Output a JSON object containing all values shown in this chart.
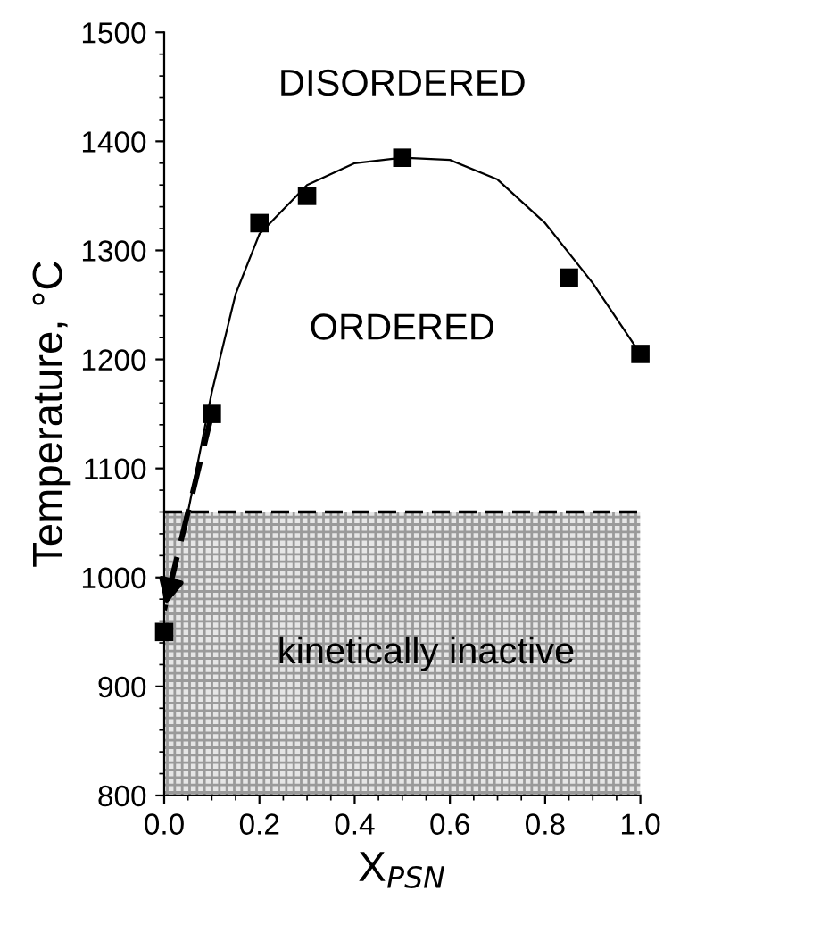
{
  "chart_data": {
    "type": "scatter",
    "xlabel": "X$_{PSN}$",
    "ylabel": "Temperature, °C",
    "xlim": [
      0,
      1.0
    ],
    "ylim": [
      800,
      1500
    ],
    "xticks": [
      {
        "value": 0,
        "label": "0.0"
      },
      0.2,
      0.4,
      0.6,
      0.8,
      {
        "value": 1.0,
        "label": "1.0"
      }
    ],
    "yticks": [
      800,
      900,
      1000,
      1100,
      1200,
      1300,
      1400,
      1500
    ],
    "grid": false,
    "legend": false,
    "series": [
      {
        "color": "#000000",
        "marker": "square",
        "x": [
          0.0,
          0.1,
          0.2,
          0.3,
          0.5,
          0.85,
          1.0
        ],
        "values": [
          950,
          1150,
          1325,
          1350,
          1385,
          1275,
          1205
        ]
      },
      {
        "type": "line",
        "color": "#000000",
        "marker": "none",
        "line_style": "solid",
        "x": [
          0.05,
          0.1,
          0.15,
          0.2,
          0.3,
          0.4,
          0.5,
          0.6,
          0.7,
          0.8,
          0.9,
          1.0
        ],
        "values": [
          1060,
          1170,
          1260,
          1315,
          1360,
          1380,
          1385,
          1383,
          1365,
          1325,
          1270,
          1205
        ]
      },
      {
        "type": "line",
        "color": "#000000",
        "marker": "none",
        "line_style": "dashed",
        "x": [
          0.1,
          0.0
        ],
        "values": [
          1150,
          970
        ]
      }
    ],
    "bands": [
      {
        "axis": "y",
        "from": 800,
        "to": 1060,
        "label": "kinetically inactive",
        "color": "#9a9a9a"
      }
    ],
    "ref_lines": [
      {
        "axis": "y",
        "value": 1060,
        "label": null,
        "color": "#000000",
        "line_style": "dashed"
      }
    ],
    "annotations": [
      "DISORDERED",
      "ORDERED"
    ]
  }
}
